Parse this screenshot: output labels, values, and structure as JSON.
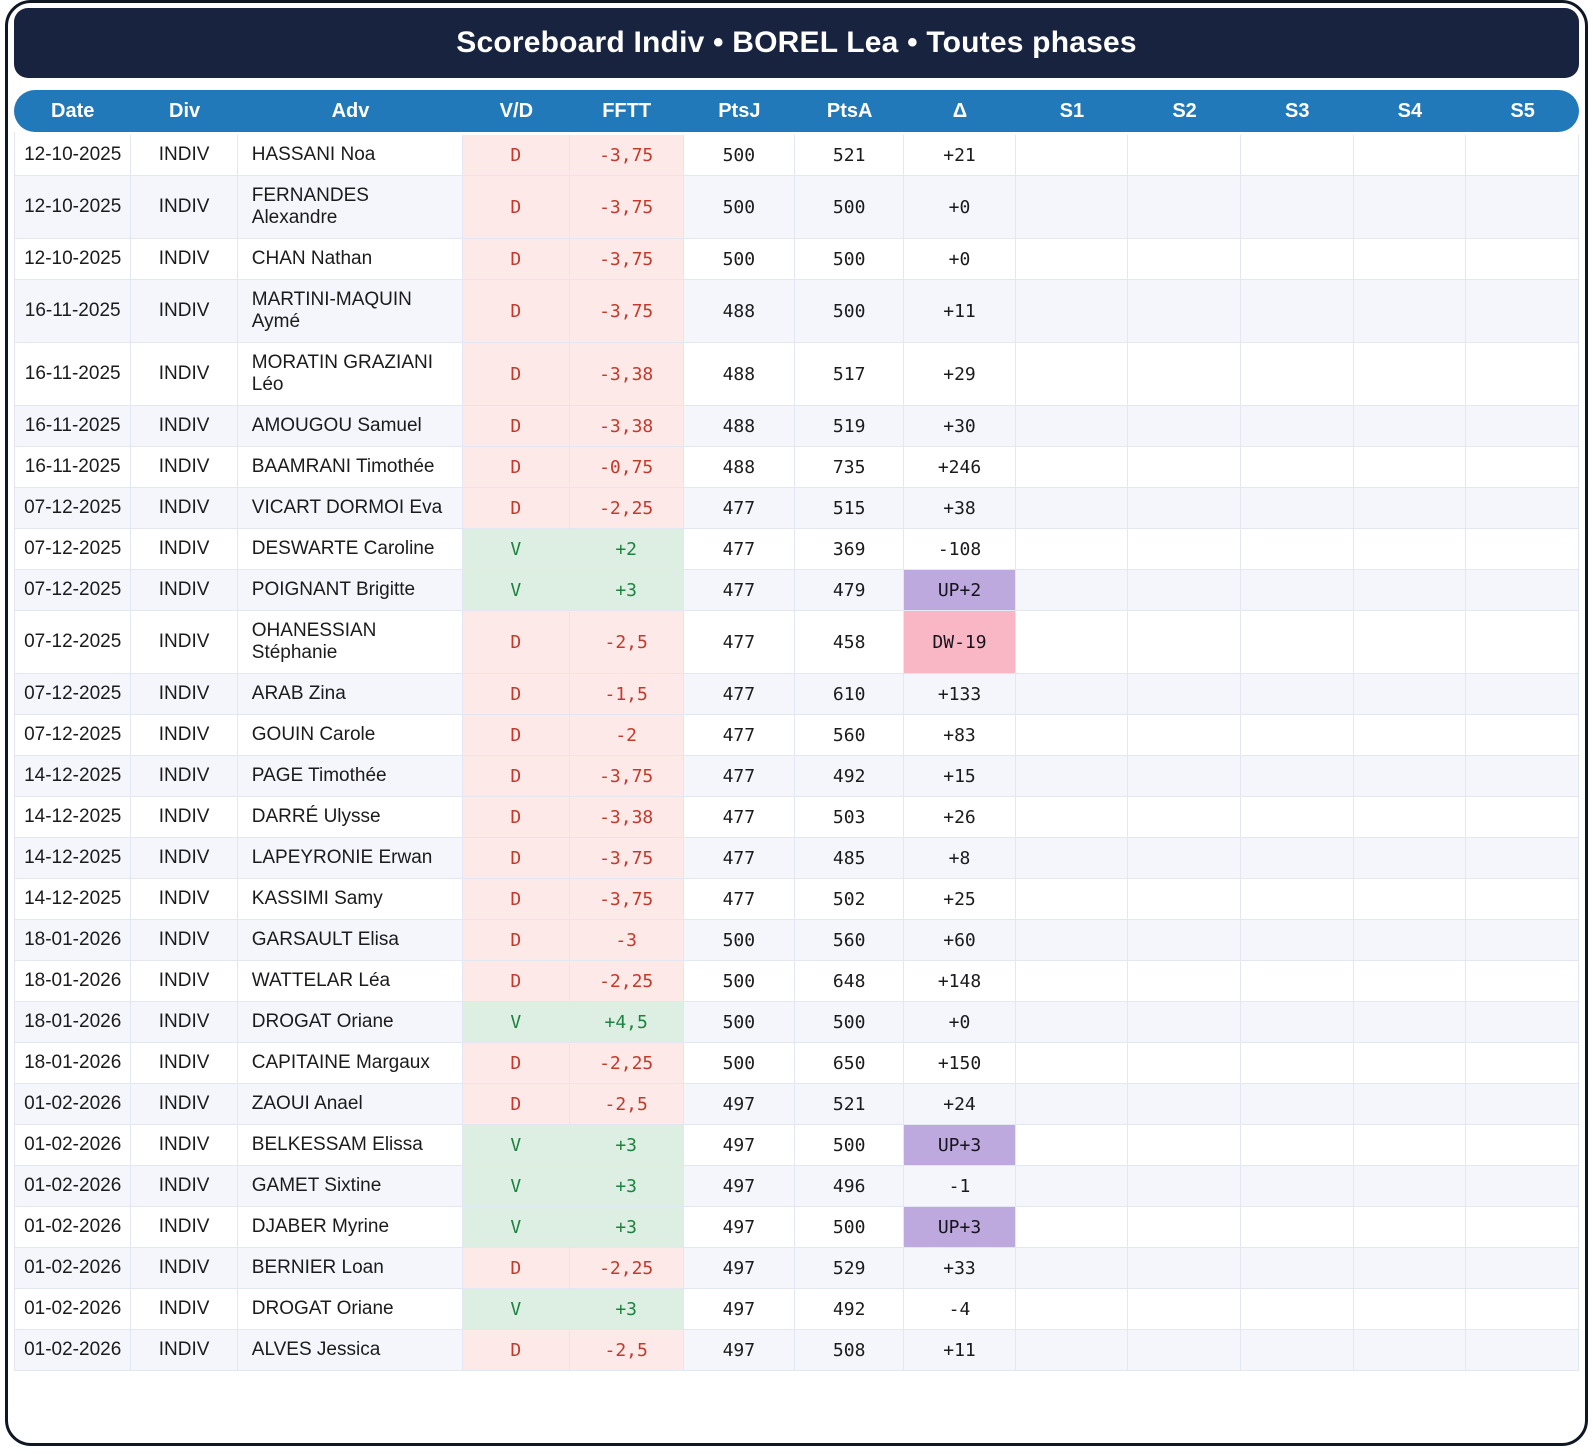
{
  "title": "Scoreboard Indiv • BOREL Lea • Toutes phases",
  "colors": {
    "title_bar": "#18233F",
    "header": "#2279B9",
    "stripe": "#F4F6FB",
    "win_bg": "#DDEFE2",
    "win_text": "#1F8240",
    "loss_bg": "#FDEAE8",
    "loss_text": "#C33A2D",
    "delta_up_bg": "#BEA9DF",
    "delta_down_bg": "#F9B7C6"
  },
  "table": {
    "columns": [
      "Date",
      "Div",
      "Adv",
      "V/D",
      "FFTT",
      "PtsJ",
      "PtsA",
      "Δ",
      "S1",
      "S2",
      "S3",
      "S4",
      "S5"
    ],
    "rows": [
      {
        "date": "12-10-2025",
        "div": "INDIV",
        "adv": "HASSANI Noa",
        "vd": "D",
        "fftt": "-3,75",
        "ptsj": "500",
        "ptsa": "521",
        "delta": "+21",
        "delta_tag": "",
        "s1": "",
        "s2": "",
        "s3": "",
        "s4": "",
        "s5": ""
      },
      {
        "date": "12-10-2025",
        "div": "INDIV",
        "adv": "FERNANDES Alexandre",
        "vd": "D",
        "fftt": "-3,75",
        "ptsj": "500",
        "ptsa": "500",
        "delta": "+0",
        "delta_tag": "",
        "s1": "",
        "s2": "",
        "s3": "",
        "s4": "",
        "s5": ""
      },
      {
        "date": "12-10-2025",
        "div": "INDIV",
        "adv": "CHAN Nathan",
        "vd": "D",
        "fftt": "-3,75",
        "ptsj": "500",
        "ptsa": "500",
        "delta": "+0",
        "delta_tag": "",
        "s1": "",
        "s2": "",
        "s3": "",
        "s4": "",
        "s5": ""
      },
      {
        "date": "16-11-2025",
        "div": "INDIV",
        "adv": "MARTINI-MAQUIN Aymé",
        "vd": "D",
        "fftt": "-3,75",
        "ptsj": "488",
        "ptsa": "500",
        "delta": "+11",
        "delta_tag": "",
        "s1": "",
        "s2": "",
        "s3": "",
        "s4": "",
        "s5": ""
      },
      {
        "date": "16-11-2025",
        "div": "INDIV",
        "adv": "MORATIN GRAZIANI Léo",
        "vd": "D",
        "fftt": "-3,38",
        "ptsj": "488",
        "ptsa": "517",
        "delta": "+29",
        "delta_tag": "",
        "s1": "",
        "s2": "",
        "s3": "",
        "s4": "",
        "s5": ""
      },
      {
        "date": "16-11-2025",
        "div": "INDIV",
        "adv": "AMOUGOU Samuel",
        "vd": "D",
        "fftt": "-3,38",
        "ptsj": "488",
        "ptsa": "519",
        "delta": "+30",
        "delta_tag": "",
        "s1": "",
        "s2": "",
        "s3": "",
        "s4": "",
        "s5": ""
      },
      {
        "date": "16-11-2025",
        "div": "INDIV",
        "adv": "BAAMRANI Timothée",
        "vd": "D",
        "fftt": "-0,75",
        "ptsj": "488",
        "ptsa": "735",
        "delta": "+246",
        "delta_tag": "",
        "s1": "",
        "s2": "",
        "s3": "",
        "s4": "",
        "s5": ""
      },
      {
        "date": "07-12-2025",
        "div": "INDIV",
        "adv": "VICART DORMOI Eva",
        "vd": "D",
        "fftt": "-2,25",
        "ptsj": "477",
        "ptsa": "515",
        "delta": "+38",
        "delta_tag": "",
        "s1": "",
        "s2": "",
        "s3": "",
        "s4": "",
        "s5": ""
      },
      {
        "date": "07-12-2025",
        "div": "INDIV",
        "adv": "DESWARTE Caroline",
        "vd": "V",
        "fftt": "+2",
        "ptsj": "477",
        "ptsa": "369",
        "delta": "-108",
        "delta_tag": "",
        "s1": "",
        "s2": "",
        "s3": "",
        "s4": "",
        "s5": ""
      },
      {
        "date": "07-12-2025",
        "div": "INDIV",
        "adv": "POIGNANT Brigitte",
        "vd": "V",
        "fftt": "+3",
        "ptsj": "477",
        "ptsa": "479",
        "delta": "UP+2",
        "delta_tag": "up",
        "s1": "",
        "s2": "",
        "s3": "",
        "s4": "",
        "s5": ""
      },
      {
        "date": "07-12-2025",
        "div": "INDIV",
        "adv": "OHANESSIAN Stéphanie",
        "vd": "D",
        "fftt": "-2,5",
        "ptsj": "477",
        "ptsa": "458",
        "delta": "DW-19",
        "delta_tag": "down",
        "s1": "",
        "s2": "",
        "s3": "",
        "s4": "",
        "s5": ""
      },
      {
        "date": "07-12-2025",
        "div": "INDIV",
        "adv": "ARAB Zina",
        "vd": "D",
        "fftt": "-1,5",
        "ptsj": "477",
        "ptsa": "610",
        "delta": "+133",
        "delta_tag": "",
        "s1": "",
        "s2": "",
        "s3": "",
        "s4": "",
        "s5": ""
      },
      {
        "date": "07-12-2025",
        "div": "INDIV",
        "adv": "GOUIN Carole",
        "vd": "D",
        "fftt": "-2",
        "ptsj": "477",
        "ptsa": "560",
        "delta": "+83",
        "delta_tag": "",
        "s1": "",
        "s2": "",
        "s3": "",
        "s4": "",
        "s5": ""
      },
      {
        "date": "14-12-2025",
        "div": "INDIV",
        "adv": "PAGE Timothée",
        "vd": "D",
        "fftt": "-3,75",
        "ptsj": "477",
        "ptsa": "492",
        "delta": "+15",
        "delta_tag": "",
        "s1": "",
        "s2": "",
        "s3": "",
        "s4": "",
        "s5": ""
      },
      {
        "date": "14-12-2025",
        "div": "INDIV",
        "adv": "DARRÉ Ulysse",
        "vd": "D",
        "fftt": "-3,38",
        "ptsj": "477",
        "ptsa": "503",
        "delta": "+26",
        "delta_tag": "",
        "s1": "",
        "s2": "",
        "s3": "",
        "s4": "",
        "s5": ""
      },
      {
        "date": "14-12-2025",
        "div": "INDIV",
        "adv": "LAPEYRONIE Erwan",
        "vd": "D",
        "fftt": "-3,75",
        "ptsj": "477",
        "ptsa": "485",
        "delta": "+8",
        "delta_tag": "",
        "s1": "",
        "s2": "",
        "s3": "",
        "s4": "",
        "s5": ""
      },
      {
        "date": "14-12-2025",
        "div": "INDIV",
        "adv": "KASSIMI Samy",
        "vd": "D",
        "fftt": "-3,75",
        "ptsj": "477",
        "ptsa": "502",
        "delta": "+25",
        "delta_tag": "",
        "s1": "",
        "s2": "",
        "s3": "",
        "s4": "",
        "s5": ""
      },
      {
        "date": "18-01-2026",
        "div": "INDIV",
        "adv": "GARSAULT Elisa",
        "vd": "D",
        "fftt": "-3",
        "ptsj": "500",
        "ptsa": "560",
        "delta": "+60",
        "delta_tag": "",
        "s1": "",
        "s2": "",
        "s3": "",
        "s4": "",
        "s5": ""
      },
      {
        "date": "18-01-2026",
        "div": "INDIV",
        "adv": "WATTELAR Léa",
        "vd": "D",
        "fftt": "-2,25",
        "ptsj": "500",
        "ptsa": "648",
        "delta": "+148",
        "delta_tag": "",
        "s1": "",
        "s2": "",
        "s3": "",
        "s4": "",
        "s5": ""
      },
      {
        "date": "18-01-2026",
        "div": "INDIV",
        "adv": "DROGAT Oriane",
        "vd": "V",
        "fftt": "+4,5",
        "ptsj": "500",
        "ptsa": "500",
        "delta": "+0",
        "delta_tag": "",
        "s1": "",
        "s2": "",
        "s3": "",
        "s4": "",
        "s5": ""
      },
      {
        "date": "18-01-2026",
        "div": "INDIV",
        "adv": "CAPITAINE Margaux",
        "vd": "D",
        "fftt": "-2,25",
        "ptsj": "500",
        "ptsa": "650",
        "delta": "+150",
        "delta_tag": "",
        "s1": "",
        "s2": "",
        "s3": "",
        "s4": "",
        "s5": ""
      },
      {
        "date": "01-02-2026",
        "div": "INDIV",
        "adv": "ZAOUI Anael",
        "vd": "D",
        "fftt": "-2,5",
        "ptsj": "497",
        "ptsa": "521",
        "delta": "+24",
        "delta_tag": "",
        "s1": "",
        "s2": "",
        "s3": "",
        "s4": "",
        "s5": ""
      },
      {
        "date": "01-02-2026",
        "div": "INDIV",
        "adv": "BELKESSAM Elissa",
        "vd": "V",
        "fftt": "+3",
        "ptsj": "497",
        "ptsa": "500",
        "delta": "UP+3",
        "delta_tag": "up",
        "s1": "",
        "s2": "",
        "s3": "",
        "s4": "",
        "s5": ""
      },
      {
        "date": "01-02-2026",
        "div": "INDIV",
        "adv": "GAMET Sixtine",
        "vd": "V",
        "fftt": "+3",
        "ptsj": "497",
        "ptsa": "496",
        "delta": "-1",
        "delta_tag": "",
        "s1": "",
        "s2": "",
        "s3": "",
        "s4": "",
        "s5": ""
      },
      {
        "date": "01-02-2026",
        "div": "INDIV",
        "adv": "DJABER Myrine",
        "vd": "V",
        "fftt": "+3",
        "ptsj": "497",
        "ptsa": "500",
        "delta": "UP+3",
        "delta_tag": "up",
        "s1": "",
        "s2": "",
        "s3": "",
        "s4": "",
        "s5": ""
      },
      {
        "date": "01-02-2026",
        "div": "INDIV",
        "adv": "BERNIER Loan",
        "vd": "D",
        "fftt": "-2,25",
        "ptsj": "497",
        "ptsa": "529",
        "delta": "+33",
        "delta_tag": "",
        "s1": "",
        "s2": "",
        "s3": "",
        "s4": "",
        "s5": ""
      },
      {
        "date": "01-02-2026",
        "div": "INDIV",
        "adv": "DROGAT Oriane",
        "vd": "V",
        "fftt": "+3",
        "ptsj": "497",
        "ptsa": "492",
        "delta": "-4",
        "delta_tag": "",
        "s1": "",
        "s2": "",
        "s3": "",
        "s4": "",
        "s5": ""
      },
      {
        "date": "01-02-2026",
        "div": "INDIV",
        "adv": "ALVES Jessica",
        "vd": "D",
        "fftt": "-2,5",
        "ptsj": "497",
        "ptsa": "508",
        "delta": "+11",
        "delta_tag": "",
        "s1": "",
        "s2": "",
        "s3": "",
        "s4": "",
        "s5": ""
      }
    ]
  }
}
